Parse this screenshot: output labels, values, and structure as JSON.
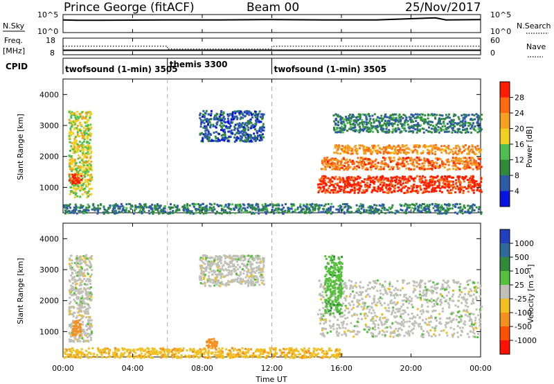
{
  "header": {
    "title": "Prince George (fitACF)",
    "beam": "Beam 00",
    "date": "25/Nov/2017"
  },
  "sky_panel": {
    "left_label": "N.Sky",
    "left_tick_top": "10^5",
    "left_tick_bottom": "10^0",
    "right_tick_top": "10^5",
    "right_tick_bottom": "10^0",
    "right_label": "N.Search"
  },
  "freq_panel": {
    "label_line1": "Freq.",
    "label_line2": "[MHz]",
    "tick_top": "18",
    "tick_bottom": "8",
    "right_tick_top": "60",
    "right_tick_bottom": "0",
    "right_label": "Nave"
  },
  "cpid_panel": {
    "label": "CPID",
    "segments": [
      {
        "name": "twofsound (1-min) 3505",
        "start_hour": 0
      },
      {
        "name": "themis 3300",
        "start_hour": 6
      },
      {
        "name": "twofsound (1-min) 3505",
        "start_hour": 12
      }
    ]
  },
  "power_panel": {
    "ylabel": "Slant Range [km]",
    "yticks": [
      "1000",
      "2000",
      "3000",
      "4000"
    ],
    "colorbar_label": "Power [dB]",
    "colorbar_ticks": [
      "4",
      "8",
      "12",
      "16",
      "20",
      "24",
      "28"
    ],
    "colorbar_colors": [
      "#0a14e0",
      "#2f5aa8",
      "#2f8a3c",
      "#4fbf4f",
      "#f0d020",
      "#f5a020",
      "#ff6a10",
      "#ff1c00"
    ]
  },
  "velocity_panel": {
    "ylabel": "Slant Range [km]",
    "yticks": [
      "1000",
      "2000",
      "3000",
      "4000"
    ],
    "colorbar_label": "Velocity [m s⁻¹]",
    "colorbar_ticks": [
      "1000",
      "500",
      "100",
      "25",
      "-25",
      "-100",
      "-500",
      "-1000"
    ],
    "colorbar_colors": [
      "#2040c0",
      "#2f6a9a",
      "#2f8a3c",
      "#55c03a",
      "#c0c0b8",
      "#f0c020",
      "#f59020",
      "#ff5000",
      "#ff1000"
    ]
  },
  "xaxis": {
    "label": "Time UT",
    "ticks": [
      "00:00",
      "04:00",
      "08:00",
      "12:00",
      "16:00",
      "20:00",
      "00:00"
    ]
  },
  "chart_data": [
    {
      "type": "line",
      "title": "N.Sky / N.Search",
      "x_range_hours": [
        0,
        24
      ],
      "series": [
        {
          "name": "N.Sky",
          "x": [
            0,
            0.8,
            2,
            6,
            9,
            12,
            15,
            18,
            21.4,
            22,
            24
          ],
          "y_log10": [
            3.6,
            3.5,
            3.5,
            3.6,
            3.6,
            3.7,
            3.6,
            3.6,
            4.2,
            3.6,
            3.7
          ]
        }
      ]
    },
    {
      "type": "line",
      "title": "Freq. / Nave",
      "x_range_hours": [
        0,
        24
      ],
      "ylim": [
        8,
        18
      ],
      "series": [
        {
          "name": "Freq.",
          "x": [
            0,
            6,
            6,
            12,
            12,
            24
          ],
          "y": [
            10.5,
            10.5,
            10.5,
            10.5,
            10.5,
            10.5
          ]
        },
        {
          "name": "Nave",
          "x": [
            0,
            6,
            6,
            12,
            12,
            24
          ],
          "y": [
            31,
            31,
            20,
            20,
            31,
            31
          ]
        }
      ]
    },
    {
      "type": "heatmap",
      "title": "Power [dB]",
      "xlabel": "Time UT",
      "ylabel": "Slant Range [km]",
      "xlim_hours": [
        0,
        24
      ],
      "ylim": [
        180,
        4500
      ],
      "clim": [
        0,
        30
      ],
      "regions": [
        {
          "x": [
            0.3,
            1.6
          ],
          "y": [
            700,
            3500
          ],
          "value": 16
        },
        {
          "x": [
            0.3,
            1.0
          ],
          "y": [
            1150,
            1450
          ],
          "value": 28
        },
        {
          "x": [
            7.8,
            11.5
          ],
          "y": [
            2500,
            3500
          ],
          "value": 6
        },
        {
          "x": [
            14.6,
            24
          ],
          "y": [
            850,
            1400
          ],
          "value": 28
        },
        {
          "x": [
            14.8,
            24
          ],
          "y": [
            1600,
            2000
          ],
          "value": 24
        },
        {
          "x": [
            15.5,
            24
          ],
          "y": [
            2100,
            2400
          ],
          "value": 22
        },
        {
          "x": [
            15.5,
            24
          ],
          "y": [
            2800,
            3400
          ],
          "value": 8
        },
        {
          "x": [
            0,
            24
          ],
          "y": [
            180,
            500
          ],
          "value": 8
        }
      ]
    },
    {
      "type": "heatmap",
      "title": "Velocity [m s⁻¹]",
      "xlabel": "Time UT",
      "ylabel": "Slant Range [km]",
      "xlim_hours": [
        0,
        24
      ],
      "ylim": [
        180,
        4500
      ],
      "clim": [
        -1000,
        1000
      ],
      "regions": [
        {
          "x": [
            0.3,
            1.6
          ],
          "y": [
            700,
            3500
          ],
          "value": 0
        },
        {
          "x": [
            0.5,
            1.0
          ],
          "y": [
            900,
            1400
          ],
          "value": -200
        },
        {
          "x": [
            7.8,
            11.5
          ],
          "y": [
            2500,
            3500
          ],
          "value": 0
        },
        {
          "x": [
            14.6,
            24
          ],
          "y": [
            850,
            2700
          ],
          "value": 0
        },
        {
          "x": [
            15.0,
            16.0
          ],
          "y": [
            1600,
            3500
          ],
          "value": 80
        },
        {
          "x": [
            8.2,
            8.8
          ],
          "y": [
            500,
            800
          ],
          "value": -400
        },
        {
          "x": [
            0,
            16
          ],
          "y": [
            180,
            500
          ],
          "value": -80
        }
      ]
    }
  ]
}
